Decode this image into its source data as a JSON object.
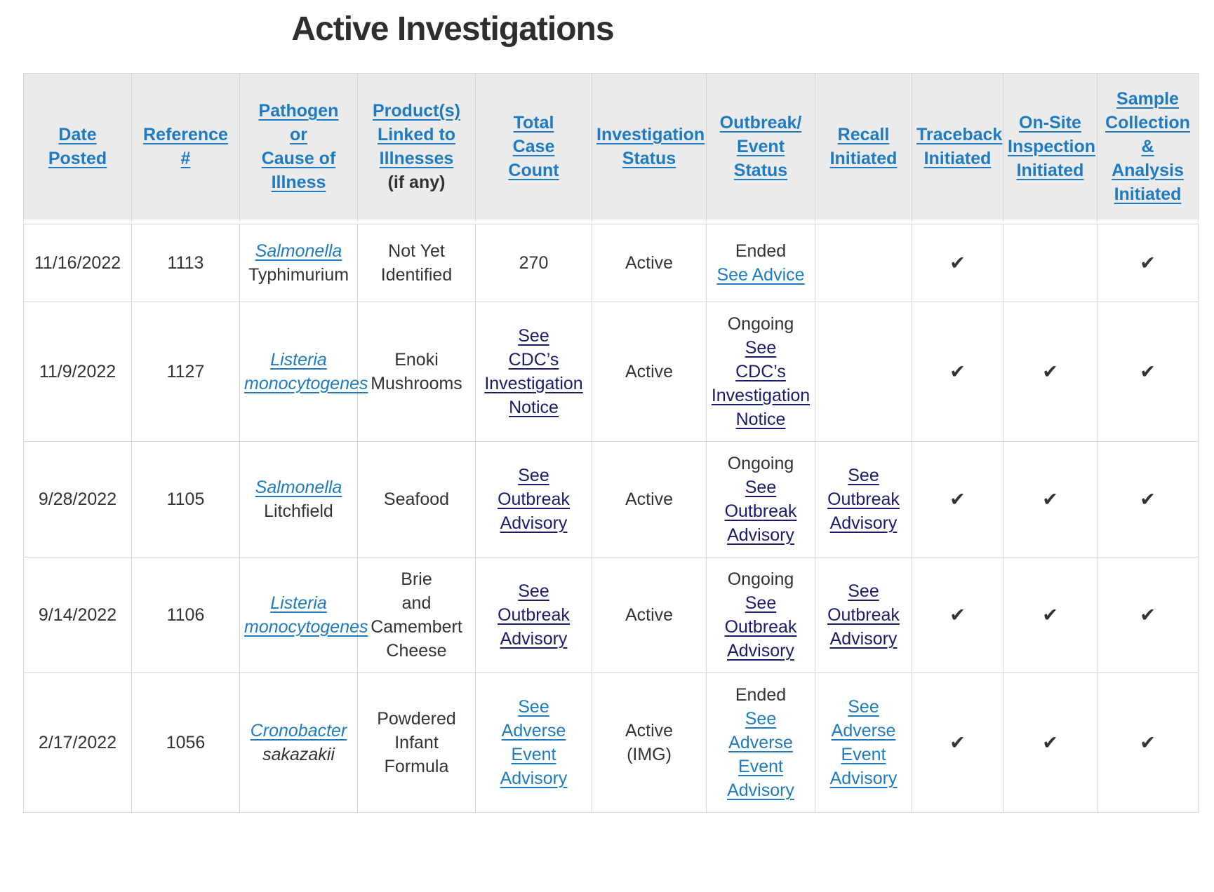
{
  "page": {
    "title": "Active Investigations"
  },
  "colors": {
    "link_blue": "#1f7bc1",
    "visited_link_navy": "#1b1b6d",
    "text": "#333333",
    "header_background": "#ebebeb",
    "grid_border": "#d6d6d6"
  },
  "table": {
    "columns": [
      {
        "id": "date-posted",
        "lines": [
          {
            "t": "Date",
            "s": "header-link"
          },
          {
            "t": "Posted",
            "s": "header-link"
          }
        ]
      },
      {
        "id": "reference-number",
        "lines": [
          {
            "t": "Reference",
            "s": "header-link"
          },
          {
            "t": "#",
            "s": "header-link"
          }
        ]
      },
      {
        "id": "pathogen-or-cause",
        "lines": [
          {
            "t": "Pathogen",
            "s": "header-link"
          },
          {
            "t": "or",
            "s": "header-link"
          },
          {
            "t": "Cause of",
            "s": "header-link"
          },
          {
            "t": "Illness",
            "s": "header-link"
          }
        ]
      },
      {
        "id": "products-linked",
        "lines": [
          {
            "t": "Product(s)",
            "s": "header-link"
          },
          {
            "t": "Linked to",
            "s": "header-link"
          },
          {
            "t": "Illnesses",
            "s": "header-link"
          },
          {
            "t": "(if any)",
            "s": "header-plain"
          }
        ]
      },
      {
        "id": "total-case-count",
        "lines": [
          {
            "t": "Total",
            "s": "header-link"
          },
          {
            "t": "Case",
            "s": "header-link"
          },
          {
            "t": "Count",
            "s": "header-link"
          }
        ]
      },
      {
        "id": "investigation-status",
        "lines": [
          {
            "t": "Investigation",
            "s": "header-link"
          },
          {
            "t": "Status",
            "s": "header-link"
          }
        ]
      },
      {
        "id": "outbreak-event-status",
        "lines": [
          {
            "t": "Outbreak/",
            "s": "header-link"
          },
          {
            "t": "Event",
            "s": "header-link"
          },
          {
            "t": "Status",
            "s": "header-link"
          }
        ]
      },
      {
        "id": "recall-initiated",
        "lines": [
          {
            "t": "Recall",
            "s": "header-link"
          },
          {
            "t": "Initiated",
            "s": "header-link"
          }
        ]
      },
      {
        "id": "traceback-initiated",
        "lines": [
          {
            "t": "Traceback",
            "s": "header-link"
          },
          {
            "t": "Initiated",
            "s": "header-link"
          }
        ]
      },
      {
        "id": "onsite-inspection-initiated",
        "lines": [
          {
            "t": "On-Site",
            "s": "header-link"
          },
          {
            "t": "Inspection",
            "s": "header-link"
          },
          {
            "t": "Initiated",
            "s": "header-link"
          }
        ]
      },
      {
        "id": "sample-collection-analysis-initiated",
        "lines": [
          {
            "t": "Sample",
            "s": "header-link"
          },
          {
            "t": "Collection",
            "s": "header-link"
          },
          {
            "t": "&",
            "s": "header-link"
          },
          {
            "t": "Analysis",
            "s": "header-link"
          },
          {
            "t": "Initiated",
            "s": "header-link"
          }
        ]
      }
    ],
    "rows": [
      {
        "cells": [
          [
            {
              "t": "11/16/2022",
              "s": "text"
            }
          ],
          [
            {
              "t": "1113",
              "s": "text"
            }
          ],
          [
            {
              "t": "Salmonella",
              "s": "italic-link"
            },
            {
              "t": "Typhimurium",
              "s": "text"
            }
          ],
          [
            {
              "t": "Not Yet",
              "s": "text"
            },
            {
              "t": "Identified",
              "s": "text"
            }
          ],
          [
            {
              "t": "270",
              "s": "text"
            }
          ],
          [
            {
              "t": "Active",
              "s": "text"
            }
          ],
          [
            {
              "t": "Ended",
              "s": "text"
            },
            {
              "t": "See Advice",
              "s": "link"
            }
          ],
          [],
          [
            {
              "t": "✔",
              "s": "check"
            }
          ],
          [],
          [
            {
              "t": "✔",
              "s": "check"
            }
          ]
        ]
      },
      {
        "cells": [
          [
            {
              "t": "11/9/2022",
              "s": "text"
            }
          ],
          [
            {
              "t": "1127",
              "s": "text"
            }
          ],
          [
            {
              "t": "Listeria",
              "s": "italic-link"
            },
            {
              "t": "monocytogenes",
              "s": "italic-link"
            }
          ],
          [
            {
              "t": "Enoki",
              "s": "text"
            },
            {
              "t": "Mushrooms",
              "s": "text"
            }
          ],
          [
            {
              "t": "See",
              "s": "navy-link"
            },
            {
              "t": "CDC’s",
              "s": "navy-link"
            },
            {
              "t": "Investigation",
              "s": "navy-link"
            },
            {
              "t": "Notice",
              "s": "navy-link"
            }
          ],
          [
            {
              "t": "Active",
              "s": "text"
            }
          ],
          [
            {
              "t": "Ongoing",
              "s": "text"
            },
            {
              "t": "See",
              "s": "navy-link"
            },
            {
              "t": "CDC’s",
              "s": "navy-link"
            },
            {
              "t": "Investigation",
              "s": "navy-link"
            },
            {
              "t": "Notice",
              "s": "navy-link"
            }
          ],
          [],
          [
            {
              "t": "✔",
              "s": "check"
            }
          ],
          [
            {
              "t": "✔",
              "s": "check"
            }
          ],
          [
            {
              "t": "✔",
              "s": "check"
            }
          ]
        ]
      },
      {
        "cells": [
          [
            {
              "t": "9/28/2022",
              "s": "text"
            }
          ],
          [
            {
              "t": "1105",
              "s": "text"
            }
          ],
          [
            {
              "t": "Salmonella",
              "s": "italic-link"
            },
            {
              "t": "Litchfield",
              "s": "text"
            }
          ],
          [
            {
              "t": "Seafood",
              "s": "text"
            }
          ],
          [
            {
              "t": "See",
              "s": "navy-link"
            },
            {
              "t": "Outbreak",
              "s": "navy-link"
            },
            {
              "t": "Advisory",
              "s": "navy-link"
            }
          ],
          [
            {
              "t": "Active",
              "s": "text"
            }
          ],
          [
            {
              "t": "Ongoing",
              "s": "text"
            },
            {
              "t": "See",
              "s": "navy-link"
            },
            {
              "t": "Outbreak",
              "s": "navy-link"
            },
            {
              "t": "Advisory",
              "s": "navy-link"
            }
          ],
          [
            {
              "t": "See",
              "s": "navy-link"
            },
            {
              "t": "Outbreak",
              "s": "navy-link"
            },
            {
              "t": "Advisory",
              "s": "navy-link"
            }
          ],
          [
            {
              "t": "✔",
              "s": "check"
            }
          ],
          [
            {
              "t": "✔",
              "s": "check"
            }
          ],
          [
            {
              "t": "✔",
              "s": "check"
            }
          ]
        ]
      },
      {
        "cells": [
          [
            {
              "t": "9/14/2022",
              "s": "text"
            }
          ],
          [
            {
              "t": "1106",
              "s": "text"
            }
          ],
          [
            {
              "t": "Listeria",
              "s": "italic-link"
            },
            {
              "t": "monocytogenes",
              "s": "italic-link"
            }
          ],
          [
            {
              "t": "Brie",
              "s": "text"
            },
            {
              "t": "and",
              "s": "text"
            },
            {
              "t": "Camembert",
              "s": "text"
            },
            {
              "t": "Cheese",
              "s": "text"
            }
          ],
          [
            {
              "t": "See",
              "s": "navy-link"
            },
            {
              "t": "Outbreak",
              "s": "navy-link"
            },
            {
              "t": "Advisory",
              "s": "navy-link"
            }
          ],
          [
            {
              "t": "Active",
              "s": "text"
            }
          ],
          [
            {
              "t": "Ongoing",
              "s": "text"
            },
            {
              "t": "See",
              "s": "navy-link"
            },
            {
              "t": "Outbreak",
              "s": "navy-link"
            },
            {
              "t": "Advisory",
              "s": "navy-link"
            }
          ],
          [
            {
              "t": "See",
              "s": "navy-link"
            },
            {
              "t": "Outbreak",
              "s": "navy-link"
            },
            {
              "t": "Advisory",
              "s": "navy-link"
            }
          ],
          [
            {
              "t": "✔",
              "s": "check"
            }
          ],
          [
            {
              "t": "✔",
              "s": "check"
            }
          ],
          [
            {
              "t": "✔",
              "s": "check"
            }
          ]
        ]
      },
      {
        "cells": [
          [
            {
              "t": "2/17/2022",
              "s": "text"
            }
          ],
          [
            {
              "t": "1056",
              "s": "text"
            }
          ],
          [
            {
              "t": "Cronobacter",
              "s": "italic-link"
            },
            {
              "t": "sakazakii",
              "s": "italic-text"
            }
          ],
          [
            {
              "t": "Powdered",
              "s": "text"
            },
            {
              "t": "Infant",
              "s": "text"
            },
            {
              "t": "Formula",
              "s": "text"
            }
          ],
          [
            {
              "t": "See",
              "s": "link"
            },
            {
              "t": "Adverse",
              "s": "link"
            },
            {
              "t": "Event",
              "s": "link"
            },
            {
              "t": "Advisory",
              "s": "link"
            }
          ],
          [
            {
              "t": "Active",
              "s": "text"
            },
            {
              "t": "(IMG)",
              "s": "text"
            }
          ],
          [
            {
              "t": "Ended",
              "s": "text"
            },
            {
              "t": "See",
              "s": "link"
            },
            {
              "t": "Adverse",
              "s": "link"
            },
            {
              "t": "Event",
              "s": "link"
            },
            {
              "t": "Advisory",
              "s": "link"
            }
          ],
          [
            {
              "t": "See",
              "s": "link"
            },
            {
              "t": "Adverse",
              "s": "link"
            },
            {
              "t": "Event",
              "s": "link"
            },
            {
              "t": "Advisory",
              "s": "link"
            }
          ],
          [
            {
              "t": "✔",
              "s": "check"
            }
          ],
          [
            {
              "t": "✔",
              "s": "check"
            }
          ],
          [
            {
              "t": "✔",
              "s": "check"
            }
          ]
        ]
      }
    ]
  }
}
